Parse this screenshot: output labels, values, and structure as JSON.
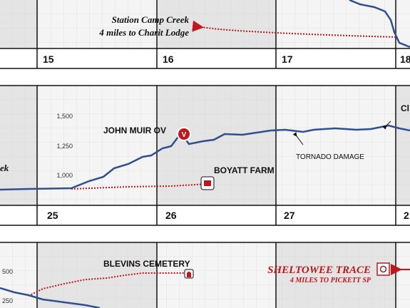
{
  "strips": [
    {
      "note": {
        "line1": "Station Camp Creek",
        "line2": "4 miles to Charit Lodge"
      },
      "miles": [
        "15",
        "16",
        "17",
        "18"
      ]
    },
    {
      "elevation_ticks": [
        "1,500",
        "1,250",
        "1,000"
      ],
      "labels": [
        "JOHN MUIR OV",
        "BOYATT FARM",
        "TORNADO DAMAGE",
        "ek",
        "Cl"
      ],
      "poi_icon": "V",
      "miles": [
        "25",
        "26",
        "27",
        "2"
      ]
    },
    {
      "elevation_ticks": [
        "500",
        "250"
      ],
      "labels": [
        "BLEVINS CEMETERY"
      ],
      "note": {
        "title": "SHELTOWEE TRACE",
        "subtitle": "4 MILES TO PICKETT SP"
      }
    }
  ]
}
